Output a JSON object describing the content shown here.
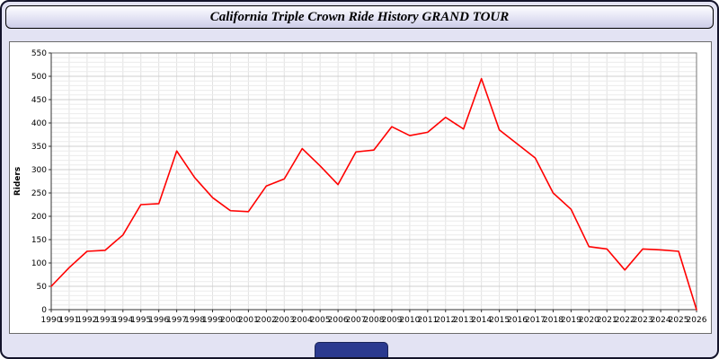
{
  "title": "California Triple Crown Ride History GRAND TOUR",
  "colors": {
    "line": "#ff0000",
    "grid_minor": "#ececec",
    "grid_major": "#cfcfcf",
    "grid_vertical": "#e2e2e2",
    "plot_frame": "#777777",
    "axis": "#333333",
    "footer_tab": "#2b3a8f"
  },
  "chart_data": {
    "type": "line",
    "title": "California Triple Crown Ride History GRAND TOUR",
    "xlabel": "",
    "ylabel": "Riders",
    "ylim": [
      0,
      550
    ],
    "y_tick_step": 50,
    "y_minor_step": 10,
    "grid": true,
    "legend": false,
    "x": [
      1990,
      1991,
      1992,
      1993,
      1994,
      1995,
      1996,
      1997,
      1998,
      1999,
      2000,
      2001,
      2002,
      2003,
      2004,
      2005,
      2006,
      2007,
      2008,
      2009,
      2010,
      2011,
      2012,
      2013,
      2014,
      2015,
      2016,
      2017,
      2018,
      2019,
      2020,
      2021,
      2022,
      2023,
      2024,
      2025,
      2026
    ],
    "series": [
      {
        "name": "Riders",
        "color": "#ff0000",
        "values": [
          50,
          90,
          125,
          127,
          160,
          225,
          227,
          340,
          283,
          240,
          212,
          210,
          265,
          280,
          345,
          308,
          268,
          338,
          342,
          392,
          373,
          380,
          412,
          387,
          495,
          385,
          355,
          325,
          250,
          215,
          135,
          130,
          85,
          130,
          128,
          125,
          0
        ]
      }
    ]
  }
}
